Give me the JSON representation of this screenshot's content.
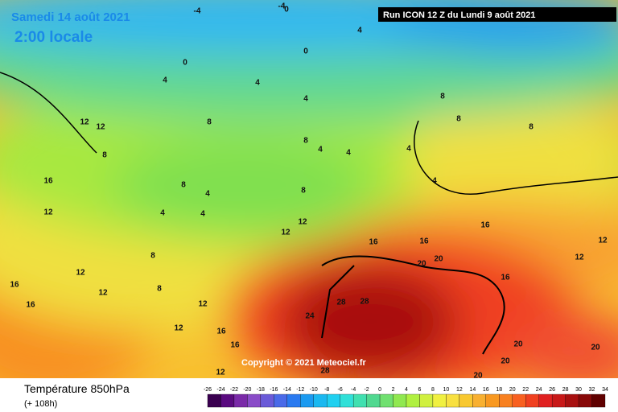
{
  "header": {
    "date": "Samedi 14 août 2021",
    "time": "2:00 locale",
    "run": "Run ICON 12 Z du Lundi 9 août 2021"
  },
  "copyright": "Copyright © 2021 Meteociel.fr",
  "footer": {
    "title": "Température 850hPa",
    "subtitle": "(+ 108h)"
  },
  "scale": {
    "ticks": [
      -26,
      -24,
      -22,
      -20,
      -18,
      -16,
      -14,
      -12,
      -10,
      -8,
      -6,
      -4,
      -2,
      0,
      2,
      4,
      6,
      8,
      10,
      12,
      14,
      16,
      18,
      20,
      22,
      24,
      26,
      28,
      30,
      32,
      34
    ],
    "colors": [
      "#3a0050",
      "#5a0a80",
      "#7a2aa8",
      "#8a4cc8",
      "#6a5ad8",
      "#4a6ae8",
      "#2a7af0",
      "#1a9af0",
      "#1ab8f0",
      "#20d0f0",
      "#30e0d8",
      "#40e0b0",
      "#50d890",
      "#70e070",
      "#90e850",
      "#b0f040",
      "#d0f040",
      "#f0f040",
      "#f8e040",
      "#f8c830",
      "#f8b030",
      "#f89820",
      "#f88020",
      "#f86020",
      "#f04020",
      "#e02020",
      "#c81818",
      "#a81010",
      "#880808",
      "#600000"
    ]
  },
  "contour_labels": [
    "-4",
    "-4",
    "0",
    "0",
    "0",
    "4",
    "4",
    "4",
    "4",
    "8",
    "8",
    "4",
    "4",
    "8",
    "4",
    "4",
    "4",
    "8",
    "12",
    "12",
    "16",
    "16",
    "20",
    "20",
    "24",
    "28",
    "28",
    "16",
    "16",
    "12",
    "12",
    "20",
    "20",
    "20",
    "16",
    "12",
    "16",
    "16",
    "12",
    "12",
    "12",
    "12",
    "16",
    "16",
    "8",
    "8",
    "12",
    "12",
    "8",
    "12",
    "28",
    "20",
    "8",
    "8",
    "8",
    "4",
    "4"
  ]
}
